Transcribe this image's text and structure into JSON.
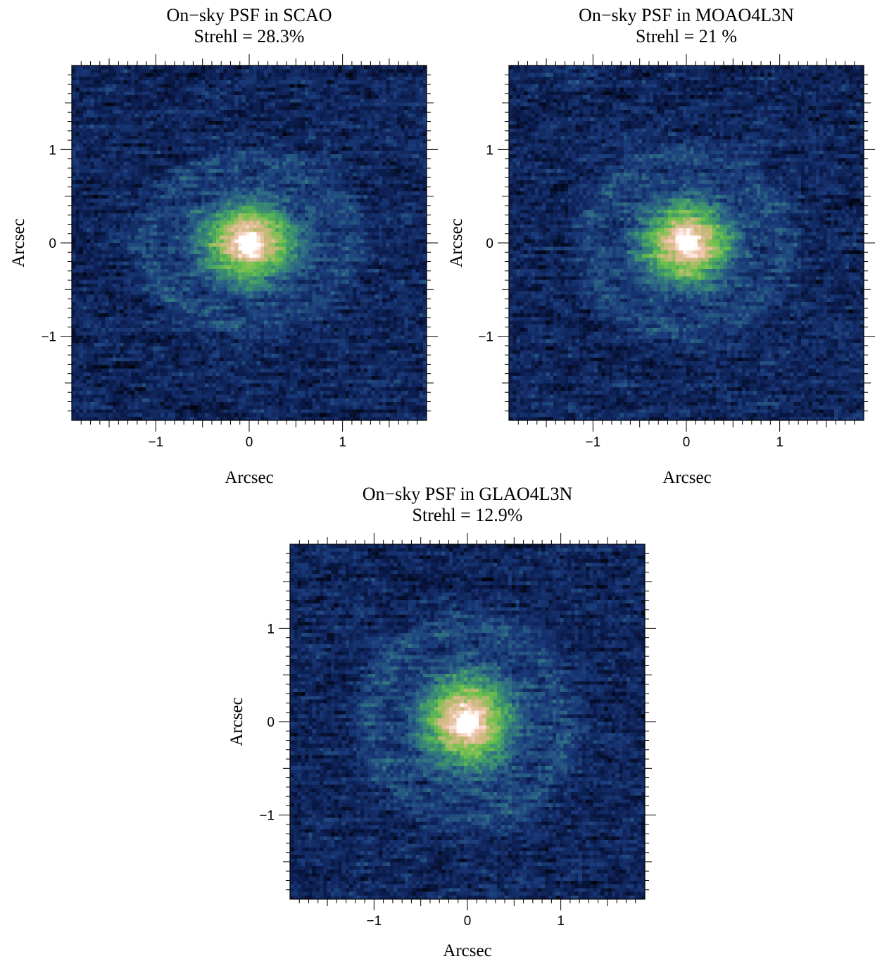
{
  "chart_data": [
    {
      "type": "heatmap",
      "title": "On−sky PSF in SCAO",
      "subtitle": "Strehl = 28.3%",
      "xlabel": "Arcsec",
      "ylabel": "Arcsec",
      "xlim": [
        -1.9,
        1.9
      ],
      "ylim": [
        -1.9,
        1.9
      ],
      "xticks": [
        -1,
        0,
        1
      ],
      "yticks": [
        -1,
        0,
        1
      ],
      "xtick_labels": [
        "−1",
        "0",
        "1"
      ],
      "ytick_labels": [
        "−1",
        "0",
        "1"
      ],
      "psf": {
        "core_peak": 1.0,
        "halo_radius_x": 1.05,
        "halo_radius_y": 0.85,
        "noise": 0.5,
        "seed": 11,
        "strehl_percent": 28.3
      },
      "colormap": [
        "#000000",
        "#0a1a4a",
        "#1a3a7a",
        "#2e6a86",
        "#3f9a6a",
        "#6cc24a",
        "#c9b87a",
        "#f2c6b0",
        "#ffffff"
      ]
    },
    {
      "type": "heatmap",
      "title": "On−sky PSF in MOAO4L3N",
      "subtitle": "Strehl = 21 %",
      "xlabel": "Arcsec",
      "ylabel": "Arcsec",
      "xlim": [
        -1.9,
        1.9
      ],
      "ylim": [
        -1.9,
        1.9
      ],
      "xticks": [
        -1,
        0,
        1
      ],
      "yticks": [
        -1,
        0,
        1
      ],
      "xtick_labels": [
        "−1",
        "0",
        "1"
      ],
      "ytick_labels": [
        "−1",
        "0",
        "1"
      ],
      "psf": {
        "core_peak": 0.95,
        "halo_radius_x": 1.0,
        "halo_radius_y": 0.9,
        "noise": 0.5,
        "seed": 23,
        "strehl_percent": 21
      },
      "colormap": [
        "#000000",
        "#0a1a4a",
        "#1a3a7a",
        "#2e6a86",
        "#3f9a6a",
        "#6cc24a",
        "#c9b87a",
        "#f2c6b0",
        "#ffffff"
      ]
    },
    {
      "type": "heatmap",
      "title": "On−sky PSF in GLAO4L3N",
      "subtitle": "Strehl = 12.9%",
      "xlabel": "Arcsec",
      "ylabel": "Arcsec",
      "xlim": [
        -1.9,
        1.9
      ],
      "ylim": [
        -1.9,
        1.9
      ],
      "xticks": [
        -1,
        0,
        1
      ],
      "yticks": [
        -1,
        0,
        1
      ],
      "xtick_labels": [
        "−1",
        "0",
        "1"
      ],
      "ytick_labels": [
        "−1",
        "0",
        "1"
      ],
      "psf": {
        "core_peak": 0.88,
        "halo_radius_x": 1.0,
        "halo_radius_y": 1.0,
        "noise": 0.5,
        "seed": 37,
        "strehl_percent": 12.9
      },
      "colormap": [
        "#000000",
        "#0a1a4a",
        "#1a3a7a",
        "#2e6a86",
        "#3f9a6a",
        "#6cc24a",
        "#c9b87a",
        "#f2c6b0",
        "#ffffff"
      ]
    }
  ]
}
